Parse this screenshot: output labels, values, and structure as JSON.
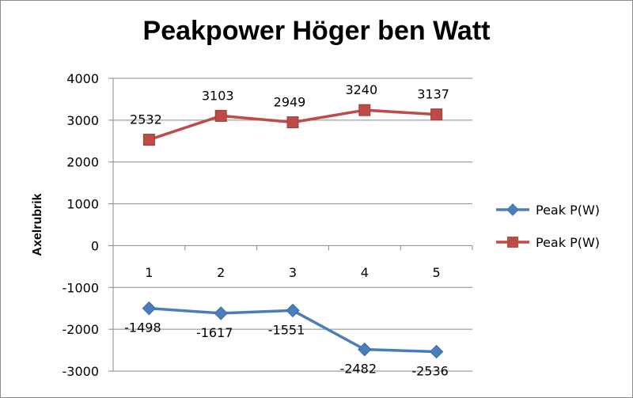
{
  "chart_data": {
    "type": "line",
    "title": "Peakpower Höger ben Watt",
    "ylabel": "Axelrubrik",
    "xlabel": "",
    "categories": [
      "1",
      "2",
      "3",
      "4",
      "5"
    ],
    "ylim": [
      -3000,
      4000
    ],
    "yticks": [
      4000,
      3000,
      2000,
      1000,
      0,
      -1000,
      -2000,
      -3000
    ],
    "grid": true,
    "legend_position": "right",
    "series": [
      {
        "name": "Peak P(W)",
        "values": [
          -1498,
          -1617,
          -1551,
          -2482,
          -2536
        ],
        "color": "#4a7ebb",
        "marker": "diamond"
      },
      {
        "name": "Peak P(W)",
        "values": [
          2532,
          3103,
          2949,
          3240,
          3137
        ],
        "color": "#be4b48",
        "marker": "square"
      }
    ]
  }
}
